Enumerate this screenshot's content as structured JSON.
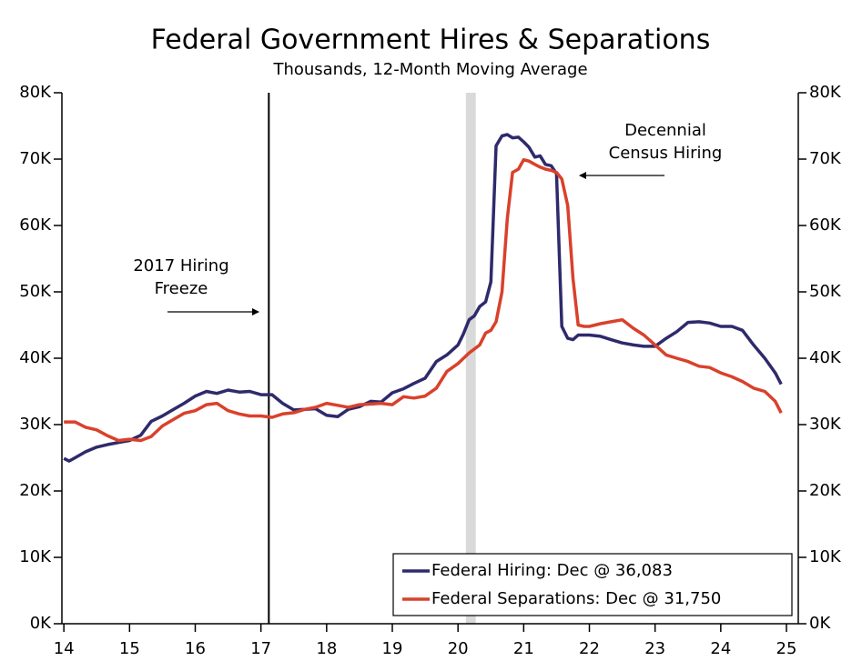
{
  "chart_data": {
    "type": "line",
    "title": "Federal Government Hires & Separations",
    "subtitle": "Thousands, 12-Month Moving Average",
    "xlim": [
      13.97,
      25.18
    ],
    "xticks": [
      14,
      15,
      16,
      17,
      18,
      19,
      20,
      21,
      22,
      23,
      24,
      25
    ],
    "ylim": [
      0,
      80000
    ],
    "yticks": [
      {
        "value": 0,
        "label": "0K"
      },
      {
        "value": 10000,
        "label": "10K"
      },
      {
        "value": 20000,
        "label": "20K"
      },
      {
        "value": 30000,
        "label": "30K"
      },
      {
        "value": 40000,
        "label": "40K"
      },
      {
        "value": 50000,
        "label": "50K"
      },
      {
        "value": 60000,
        "label": "60K"
      },
      {
        "value": 70000,
        "label": "70K"
      },
      {
        "value": 80000,
        "label": "80K"
      }
    ],
    "legend": "lower right",
    "reference_line": 17.12,
    "shaded_band": [
      20.12,
      20.27
    ],
    "annotations": [
      {
        "lines": [
          "2017 Hiring",
          "Freeze"
        ]
      },
      {
        "lines": [
          "Decennial",
          "Census Hiring"
        ]
      }
    ],
    "series": [
      {
        "name": "Federal Hiring: Dec @ 36,083",
        "color": "#2e2a6b",
        "x": [
          14.0,
          14.08,
          14.17,
          14.33,
          14.5,
          14.67,
          14.83,
          15.0,
          15.17,
          15.33,
          15.5,
          15.67,
          15.83,
          16.0,
          16.17,
          16.33,
          16.5,
          16.67,
          16.83,
          17.0,
          17.17,
          17.33,
          17.5,
          17.67,
          17.83,
          18.0,
          18.17,
          18.33,
          18.5,
          18.67,
          18.83,
          19.0,
          19.17,
          19.33,
          19.5,
          19.67,
          19.83,
          20.0,
          20.08,
          20.17,
          20.25,
          20.33,
          20.42,
          20.5,
          20.58,
          20.67,
          20.75,
          20.83,
          20.92,
          21.0,
          21.08,
          21.17,
          21.25,
          21.33,
          21.42,
          21.5,
          21.58,
          21.67,
          21.75,
          21.83,
          22.0,
          22.17,
          22.33,
          22.5,
          22.67,
          22.83,
          23.0,
          23.17,
          23.33,
          23.5,
          23.67,
          23.83,
          24.0,
          24.17,
          24.33,
          24.5,
          24.67,
          24.83,
          24.92
        ],
        "values": [
          24900,
          24500,
          25000,
          25900,
          26600,
          27000,
          27300,
          27600,
          28400,
          30500,
          31300,
          32300,
          33200,
          34300,
          35000,
          34700,
          35200,
          34900,
          35000,
          34500,
          34500,
          33200,
          32200,
          32300,
          32400,
          31400,
          31200,
          32300,
          32700,
          33500,
          33400,
          34800,
          35400,
          36200,
          37000,
          39500,
          40500,
          42000,
          43600,
          45800,
          46400,
          47800,
          48500,
          51500,
          72000,
          73500,
          73700,
          73200,
          73300,
          72600,
          71800,
          70300,
          70500,
          69200,
          69000,
          67800,
          44800,
          43000,
          42800,
          43500,
          43500,
          43300,
          42800,
          42300,
          42000,
          41800,
          41800,
          43000,
          44000,
          45400,
          45500,
          45300,
          44800,
          44800,
          44200,
          42000,
          40000,
          37800,
          36083
        ]
      },
      {
        "name": "Federal Separations: Dec @ 31,750",
        "color": "#d9412b",
        "x": [
          14.0,
          14.17,
          14.33,
          14.5,
          14.67,
          14.83,
          15.0,
          15.17,
          15.33,
          15.5,
          15.67,
          15.83,
          16.0,
          16.17,
          16.33,
          16.5,
          16.67,
          16.83,
          17.0,
          17.17,
          17.33,
          17.5,
          17.67,
          17.83,
          18.0,
          18.17,
          18.33,
          18.5,
          18.67,
          18.83,
          19.0,
          19.17,
          19.33,
          19.5,
          19.67,
          19.83,
          20.0,
          20.17,
          20.33,
          20.42,
          20.5,
          20.58,
          20.67,
          20.75,
          20.83,
          20.92,
          21.0,
          21.08,
          21.17,
          21.25,
          21.33,
          21.42,
          21.5,
          21.58,
          21.67,
          21.75,
          21.83,
          21.92,
          22.0,
          22.17,
          22.33,
          22.5,
          22.67,
          22.83,
          23.0,
          23.17,
          23.33,
          23.5,
          23.67,
          23.83,
          24.0,
          24.17,
          24.33,
          24.5,
          24.67,
          24.83,
          24.92
        ],
        "values": [
          30400,
          30400,
          29600,
          29200,
          28300,
          27600,
          27800,
          27600,
          28200,
          29800,
          30800,
          31700,
          32100,
          33000,
          33200,
          32100,
          31600,
          31300,
          31300,
          31100,
          31600,
          31800,
          32300,
          32600,
          33200,
          32900,
          32600,
          33000,
          33100,
          33200,
          33000,
          34200,
          34000,
          34300,
          35500,
          38000,
          39200,
          40800,
          42000,
          43800,
          44200,
          45500,
          50000,
          61000,
          68000,
          68500,
          69900,
          69700,
          69200,
          68800,
          68500,
          68300,
          68000,
          67000,
          63000,
          52000,
          45000,
          44800,
          44800,
          45200,
          45500,
          45800,
          44500,
          43500,
          42000,
          40500,
          40000,
          39500,
          38800,
          38600,
          37800,
          37200,
          36500,
          35500,
          35000,
          33500,
          31750
        ]
      }
    ]
  }
}
